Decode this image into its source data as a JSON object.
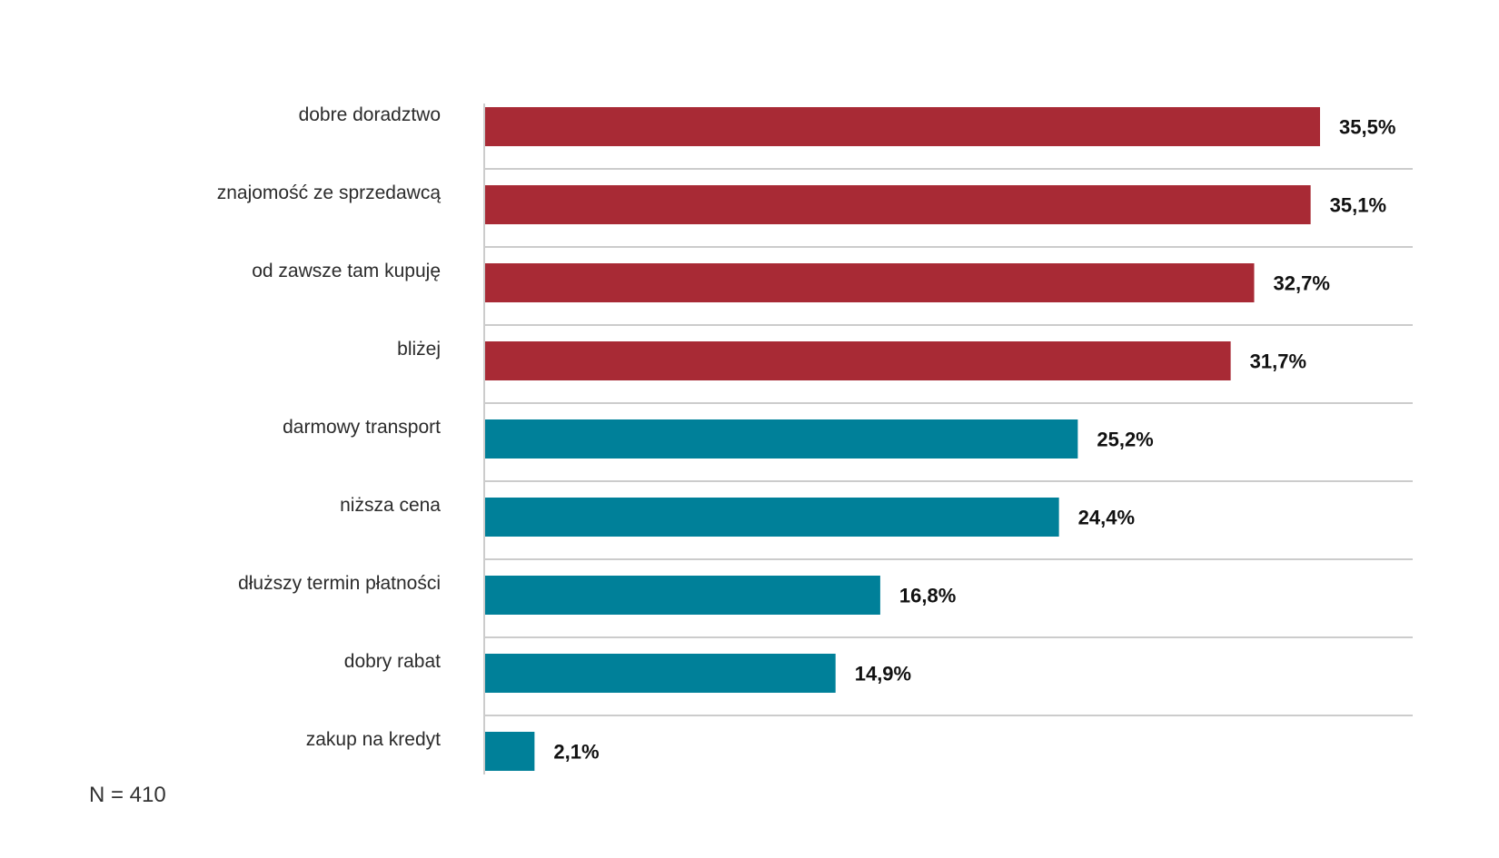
{
  "chart_data": {
    "type": "bar",
    "orientation": "horizontal",
    "categories": [
      "dobre doradztwo",
      "znajomość ze sprzedawcą",
      "od zawsze tam kupuję",
      "bliżej",
      "darmowy transport",
      "niższa cena",
      "dłuższy termin płatności",
      "dobry rabat",
      "zakup na kredyt"
    ],
    "values": [
      35.5,
      35.1,
      32.7,
      31.7,
      25.2,
      24.4,
      16.8,
      14.9,
      2.1
    ],
    "value_labels": [
      "35,5%",
      "35,1%",
      "32,7%",
      "31,7%",
      "25,2%",
      "24,4%",
      "16,8%",
      "14,9%",
      "2,1%"
    ],
    "bar_colors": [
      "#a82a35",
      "#a82a35",
      "#a82a35",
      "#a82a35",
      "#008099",
      "#008099",
      "#008099",
      "#008099",
      "#008099"
    ],
    "xlim": [
      0,
      35.5
    ],
    "grid": "horizontal separators",
    "title": "",
    "xlabel": "",
    "ylabel": ""
  },
  "note": "N = 410",
  "colors": {
    "red": "#a82a35",
    "teal": "#008099",
    "gridline": "#cccccc"
  }
}
